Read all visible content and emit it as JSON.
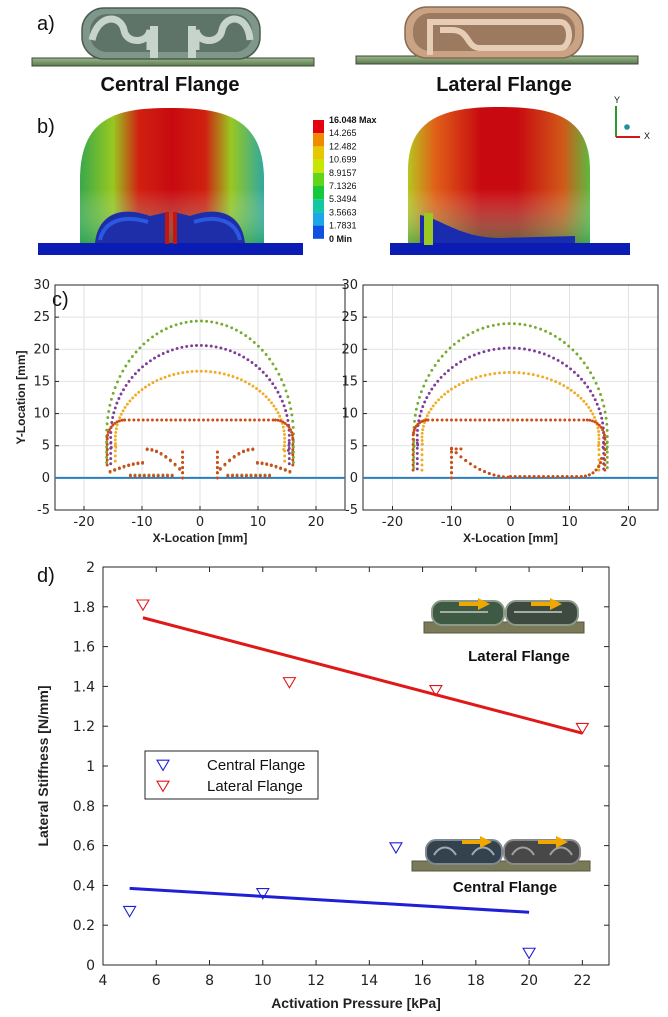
{
  "panels": {
    "a": "a)",
    "b": "b)",
    "c": "c)",
    "d": "d)"
  },
  "panel_a": {
    "left_caption": "Central Flange",
    "right_caption": "Lateral Flange"
  },
  "panel_b": {
    "scale_labels": [
      "16.048 Max",
      "14.265",
      "12.482",
      "10.699",
      "8.9157",
      "7.1326",
      "5.3494",
      "3.5663",
      "1.7831",
      "0 Min"
    ],
    "scale_colors": [
      "#e4000e",
      "#f08a00",
      "#e6c800",
      "#c8e600",
      "#62d41a",
      "#18c83c",
      "#12c8a0",
      "#1aa8e8",
      "#1050e0"
    ],
    "axis_labels": [
      "Y",
      "X"
    ]
  },
  "chart_data": [
    {
      "id": "c-left",
      "type": "scatter",
      "title": "",
      "xlabel": "X-Location [mm]",
      "ylabel": "Y-Location [mm]",
      "xlim": [
        -25,
        25
      ],
      "ylim": [
        -5,
        30
      ],
      "xticks": [
        -20,
        -10,
        0,
        10,
        20
      ],
      "yticks": [
        -5,
        0,
        5,
        10,
        15,
        20,
        25,
        30
      ],
      "grid": true,
      "baseline": 0,
      "series_colors": [
        "#cc4b17",
        "#f0ac24",
        "#7d3d98",
        "#76ab2f"
      ],
      "profile": "central"
    },
    {
      "id": "c-right",
      "type": "scatter",
      "title": "",
      "xlabel": "X-Location [mm]",
      "ylabel": "",
      "xlim": [
        -25,
        25
      ],
      "ylim": [
        -5,
        30
      ],
      "xticks": [
        -20,
        -10,
        0,
        10,
        20
      ],
      "yticks": [
        -5,
        0,
        5,
        10,
        15,
        20,
        25,
        30
      ],
      "grid": true,
      "baseline": 0,
      "series_colors": [
        "#cc4b17",
        "#f0ac24",
        "#7d3d98",
        "#76ab2f"
      ],
      "profile": "lateral"
    },
    {
      "id": "d",
      "type": "scatter",
      "title": "",
      "xlabel": "Activation Pressure [kPa]",
      "ylabel": "Lateral Stiffness [N/mm]",
      "xlim": [
        4,
        23
      ],
      "ylim": [
        0,
        2
      ],
      "xticks": [
        4,
        6,
        8,
        10,
        12,
        14,
        16,
        18,
        20,
        22
      ],
      "yticks": [
        0,
        0.2,
        0.4,
        0.6,
        0.8,
        1,
        1.2,
        1.4,
        1.6,
        1.8,
        2
      ],
      "grid": false,
      "legend": "center-left",
      "series": [
        {
          "name": "Central Flange",
          "color": "#1f1fd6",
          "x": [
            5,
            10,
            15,
            20
          ],
          "y": [
            0.27,
            0.36,
            0.59,
            0.06
          ],
          "fit": [
            [
              5,
              0.385
            ],
            [
              20,
              0.265
            ]
          ]
        },
        {
          "name": "Lateral Flange",
          "color": "#e01818",
          "x": [
            5.5,
            11,
            16.5,
            22
          ],
          "y": [
            1.81,
            1.42,
            1.38,
            1.19
          ],
          "fit": [
            [
              5.5,
              1.745
            ],
            [
              22,
              1.165
            ]
          ]
        }
      ],
      "insets": [
        "Lateral Flange",
        "Central Flange"
      ]
    }
  ]
}
